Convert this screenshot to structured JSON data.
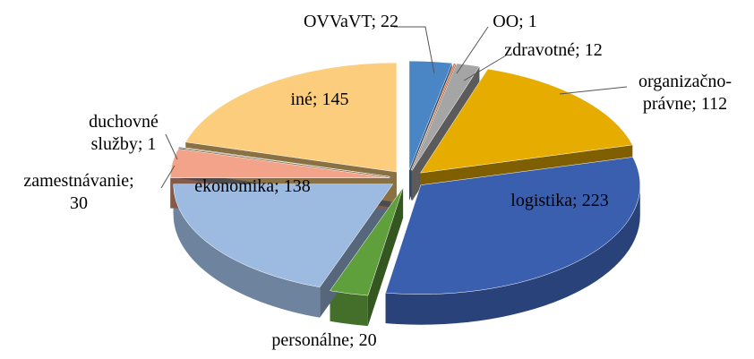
{
  "chart_data": {
    "type": "pie3d",
    "values": [
      22,
      1,
      12,
      112,
      223,
      20,
      138,
      30,
      1,
      145
    ],
    "value_labels": [
      [
        "OVVaVT; 22"
      ],
      [
        "OO; 1"
      ],
      [
        "zdravotné; 12"
      ],
      [
        "organizačno-",
        "právne; 112"
      ],
      [
        "logistika; 223"
      ],
      [
        "personálne; 20"
      ],
      [
        "ekonomika; 138"
      ],
      [
        "zamestnávanie;",
        "30"
      ],
      [
        "duchovné",
        "služby; 1"
      ],
      [
        "iné; 145"
      ]
    ],
    "colors": [
      "#4a86c5",
      "#e0763a",
      "#a5a5a5",
      "#e6ac00",
      "#3a5fae",
      "#5f9f3c",
      "#9dbbe0",
      "#f2a389",
      "#8a8a8a",
      "#fbcd7c"
    ]
  }
}
